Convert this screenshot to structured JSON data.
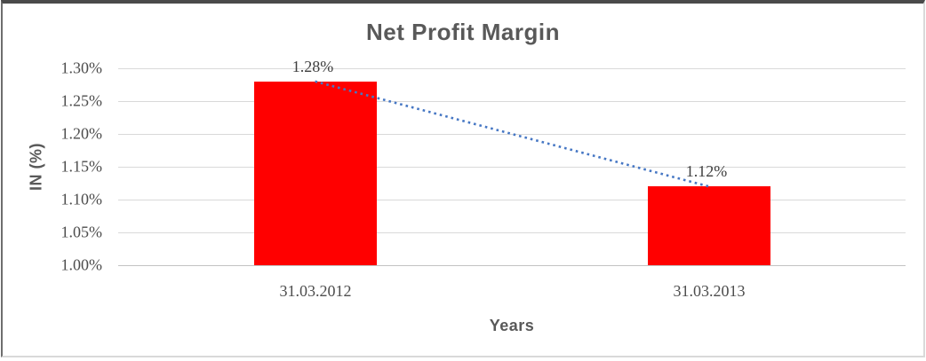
{
  "chart_data": {
    "type": "bar",
    "title": "Net Profit Margin",
    "xlabel": "Years",
    "ylabel": "IN (%)",
    "categories": [
      "31.03.2012",
      "31.03.2013"
    ],
    "series": [
      {
        "name": "Net Profit Margin",
        "values": [
          1.28,
          1.12
        ]
      }
    ],
    "data_labels": [
      "1.28%",
      "1.12%"
    ],
    "ylim": [
      1.0,
      1.3
    ],
    "ytick_step": 0.05,
    "ytick_labels_top_to_bottom": [
      "1.30%",
      "1.25%",
      "1.20%",
      "1.15%",
      "1.10%",
      "1.05%",
      "1.00%"
    ],
    "grid": true,
    "legend": "none",
    "bar_color": "#FF0000",
    "trendline": {
      "type": "linear",
      "style": "dotted",
      "color": "#4677C4",
      "from_value": 1.28,
      "to_value": 1.12
    },
    "colors": {
      "title_text": "#595959",
      "axis_title_text": "#595959",
      "tick_text": "#4d4d4d",
      "data_label_text": "#404040",
      "gridline": "#D9D9D9",
      "axis_line": "#C3C3C3",
      "plot_background": "#FFFFFF"
    }
  }
}
